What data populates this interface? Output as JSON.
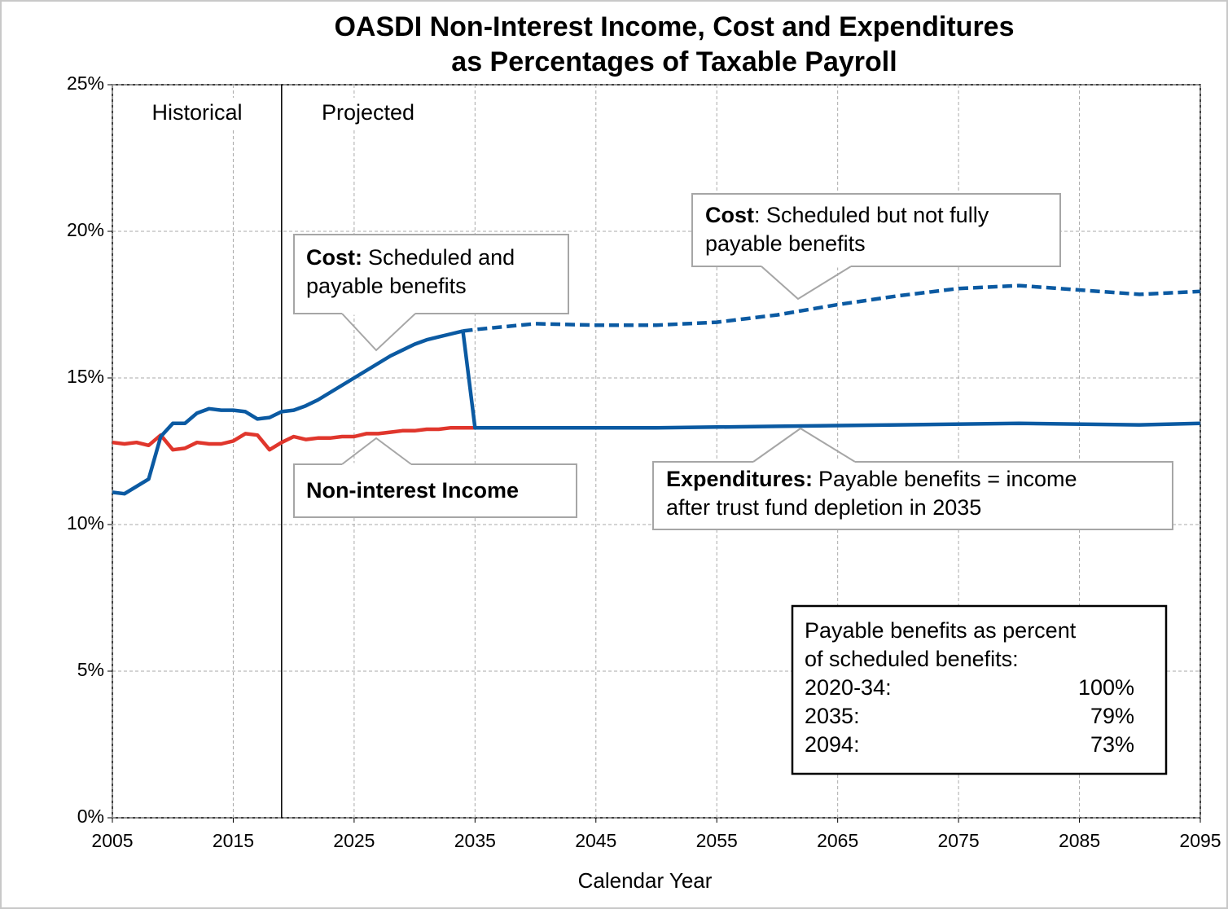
{
  "chart_data": {
    "type": "line",
    "title": [
      "OASDI Non-Interest Income, Cost and Expenditures",
      "as Percentages of Taxable Payroll"
    ],
    "x_label": "Calendar Year",
    "xlim": [
      2005,
      2095
    ],
    "xticks": [
      2005,
      2015,
      2025,
      2035,
      2045,
      2055,
      2065,
      2075,
      2085,
      2095
    ],
    "ylim": [
      0,
      25
    ],
    "yticks": [
      {
        "value": 0,
        "label": "0%"
      },
      {
        "value": 5,
        "label": "5%"
      },
      {
        "value": 10,
        "label": "10%"
      },
      {
        "value": 15,
        "label": "15%"
      },
      {
        "value": 20,
        "label": "20%"
      },
      {
        "value": 25,
        "label": "25%"
      }
    ],
    "grid": true,
    "divider_x": 2019,
    "region_labels": [
      "Historical",
      "Projected"
    ],
    "series": [
      {
        "color": "#e0362c",
        "dashed": false,
        "x": [
          2005,
          2006,
          2007,
          2008,
          2009,
          2010,
          2011,
          2012,
          2013,
          2014,
          2015,
          2016,
          2017,
          2018,
          2019,
          2020,
          2021,
          2022,
          2023,
          2024,
          2025,
          2026,
          2027,
          2028,
          2029,
          2030,
          2031,
          2032,
          2033,
          2034,
          2035
        ],
        "values": [
          12.8,
          12.75,
          12.8,
          12.7,
          13.05,
          12.55,
          12.6,
          12.8,
          12.75,
          12.75,
          12.85,
          13.1,
          13.05,
          12.55,
          12.8,
          13.0,
          12.9,
          12.95,
          12.95,
          13.0,
          13.0,
          13.1,
          13.1,
          13.15,
          13.2,
          13.2,
          13.25,
          13.25,
          13.3,
          13.3,
          13.3
        ]
      },
      {
        "color": "#0b5aa2",
        "dashed": false,
        "x": [
          2005,
          2006,
          2007,
          2008,
          2009,
          2010,
          2011,
          2012,
          2013,
          2014,
          2015,
          2016,
          2017,
          2018,
          2019,
          2020,
          2021,
          2022,
          2023,
          2024,
          2025,
          2026,
          2027,
          2028,
          2029,
          2030,
          2031,
          2032,
          2033,
          2034
        ],
        "values": [
          11.1,
          11.05,
          11.3,
          11.55,
          13.0,
          13.45,
          13.45,
          13.8,
          13.95,
          13.9,
          13.9,
          13.85,
          13.6,
          13.65,
          13.85,
          13.9,
          14.05,
          14.25,
          14.5,
          14.75,
          15.0,
          15.25,
          15.5,
          15.75,
          15.95,
          16.15,
          16.3,
          16.4,
          16.5,
          16.6
        ]
      },
      {
        "color": "#0b5aa2",
        "dashed": true,
        "x": [
          2034,
          2035,
          2040,
          2045,
          2050,
          2055,
          2060,
          2065,
          2070,
          2075,
          2080,
          2085,
          2090,
          2095
        ],
        "values": [
          16.6,
          16.65,
          16.85,
          16.8,
          16.8,
          16.9,
          17.15,
          17.5,
          17.8,
          18.05,
          18.15,
          18.0,
          17.85,
          17.95
        ]
      },
      {
        "color": "#0b5aa2",
        "dashed": false,
        "x": [
          2034,
          2035,
          2040,
          2050,
          2060,
          2070,
          2080,
          2090,
          2095
        ],
        "values": [
          16.6,
          13.3,
          13.3,
          13.3,
          13.35,
          13.4,
          13.45,
          13.4,
          13.45
        ]
      }
    ],
    "annotations": [
      {
        "bold": "Cost:",
        "lines": [
          "Scheduled and",
          "payable benefits"
        ]
      },
      {
        "bold": "Cost",
        "lines": [
          ": Scheduled but not fully",
          "payable benefits"
        ]
      },
      {
        "bold": "Non-interest Income",
        "lines": []
      },
      {
        "bold": "Expenditures:",
        "lines": [
          "Payable benefits = income",
          "after trust fund depletion in 2035"
        ]
      }
    ],
    "note": {
      "lines": [
        "Payable benefits as percent",
        "of scheduled benefits:"
      ],
      "rows": [
        [
          "2020-34:",
          "100%"
        ],
        [
          "2035:",
          "79%"
        ],
        [
          "2094:",
          "73%"
        ]
      ]
    }
  }
}
